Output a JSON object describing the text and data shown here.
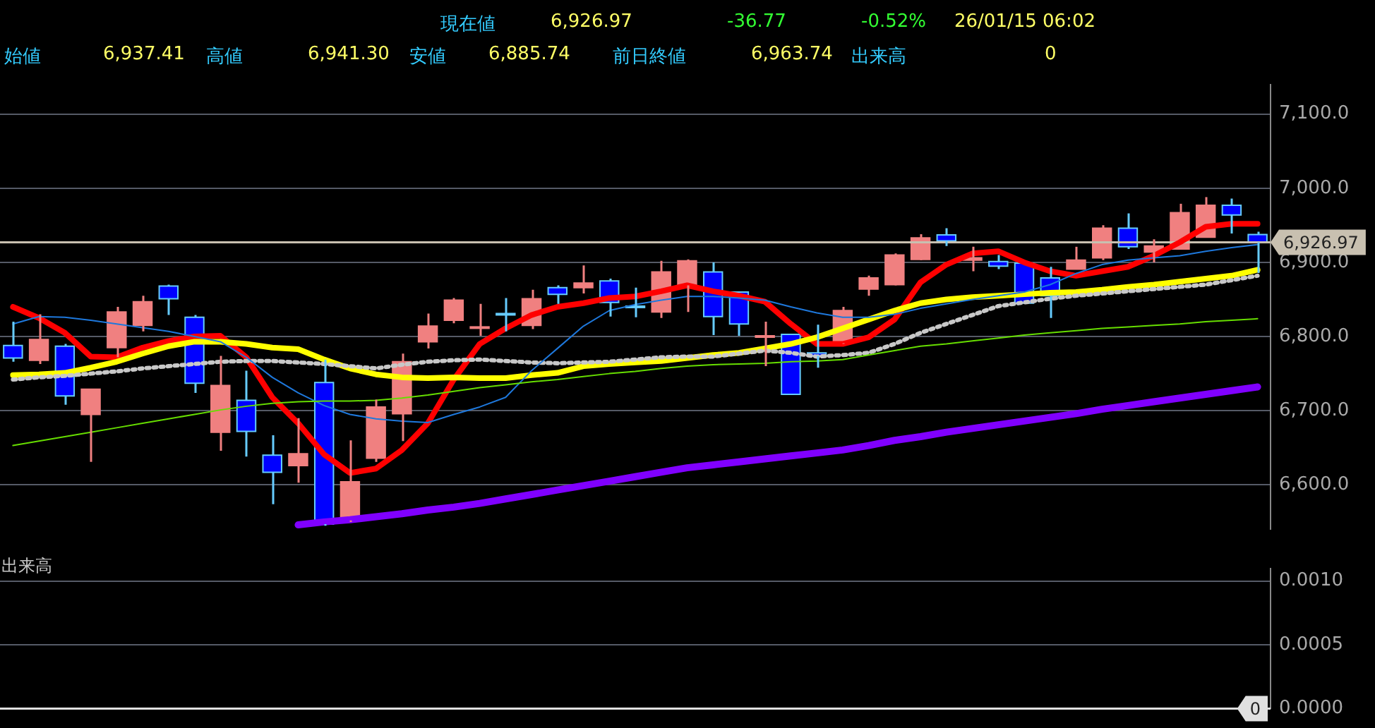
{
  "chart_data": [
    {
      "type": "candlestick",
      "tick_labels": "y",
      "grid": "y",
      "categories": [
        null,
        null,
        null,
        null,
        null,
        null,
        null,
        null,
        null,
        null,
        null,
        null,
        null,
        null,
        null,
        null,
        null,
        null,
        null,
        null,
        null,
        null,
        null,
        null,
        null,
        null,
        null,
        null,
        null,
        null,
        null,
        null,
        null,
        null,
        null,
        null,
        null,
        null,
        null,
        null,
        null,
        null,
        null,
        null,
        null,
        null,
        null,
        null,
        null
      ],
      "ohlc": [
        [
          6788,
          6820,
          6766,
          6771
        ],
        [
          6768,
          6830,
          6763,
          6796
        ],
        [
          6787,
          6790,
          6708,
          6720
        ],
        [
          6695,
          6729,
          6631,
          6729
        ],
        [
          6785,
          6840,
          6772,
          6833
        ],
        [
          6815,
          6855,
          6807,
          6847
        ],
        [
          6868,
          6870,
          6829,
          6851
        ],
        [
          6826,
          6829,
          6724,
          6737
        ],
        [
          6671,
          6774,
          6646,
          6734
        ],
        [
          6714,
          6754,
          6638,
          6672
        ],
        [
          6640,
          6667,
          6574,
          6617
        ],
        [
          6626,
          6690,
          6603,
          6642
        ],
        [
          6738,
          6769,
          6545,
          6547
        ],
        [
          6552,
          6660,
          6550,
          6604
        ],
        [
          6636,
          6715,
          6631,
          6705
        ],
        [
          6696,
          6777,
          6659,
          6766
        ],
        [
          6793,
          6831,
          6784,
          6814
        ],
        [
          6822,
          6852,
          6818,
          6849
        ],
        [
          6812,
          6844,
          6801,
          6813
        ],
        [
          6831,
          6852,
          6807,
          6830
        ],
        [
          6815,
          6863,
          6810,
          6851
        ],
        [
          6866,
          6869,
          6844,
          6857
        ],
        [
          6866,
          6896,
          6858,
          6872
        ],
        [
          6875,
          6878,
          6827,
          6846
        ],
        [
          6841,
          6866,
          6826,
          6840
        ],
        [
          6833,
          6902,
          6825,
          6887
        ],
        [
          6869,
          6904,
          6833,
          6902
        ],
        [
          6887,
          6900,
          6802,
          6827
        ],
        [
          6860,
          6861,
          6801,
          6817
        ],
        [
          6800,
          6820,
          6760,
          6801
        ],
        [
          6803,
          6803,
          6722,
          6722
        ],
        [
          6778,
          6816,
          6758,
          6774
        ],
        [
          6791,
          6840,
          6790,
          6835
        ],
        [
          6864,
          6882,
          6855,
          6879
        ],
        [
          6870,
          6912,
          6869,
          6910
        ],
        [
          6904,
          6938,
          6903,
          6933
        ],
        [
          6937,
          6946,
          6922,
          6929
        ],
        [
          6903,
          6921,
          6888,
          6906
        ],
        [
          6901,
          6910,
          6891,
          6895
        ],
        [
          6899,
          6899,
          6845,
          6845
        ],
        [
          6879,
          6894,
          6825,
          6855
        ],
        [
          6891,
          6921,
          6891,
          6903
        ],
        [
          6906,
          6950,
          6903,
          6946
        ],
        [
          6946,
          6966,
          6918,
          6921
        ],
        [
          6914,
          6931,
          6900,
          6922
        ],
        [
          6918,
          6979,
          6918,
          6967
        ],
        [
          6934,
          6988,
          6934,
          6977
        ],
        [
          6977,
          6986,
          6939,
          6964
        ],
        [
          6937.41,
          6941.3,
          6885.74,
          6926.97
        ]
      ],
      "colors": [
        "#0000ff",
        "#f08080",
        "#0000ff",
        "#f08080",
        "#f08080",
        "#f08080",
        "#0000ff",
        "#0000ff",
        "#f08080",
        "#0000ff",
        "#0000ff",
        "#f08080",
        "#0000ff",
        "#f08080",
        "#f08080",
        "#f08080",
        "#f08080",
        "#f08080",
        "#f08080",
        "#0000ff",
        "#f08080",
        "#0000ff",
        "#f08080",
        "#0000ff",
        "#0000ff",
        "#f08080",
        "#f08080",
        "#0000ff",
        "#0000ff",
        "#f08080",
        "#0000ff",
        "#0000ff",
        "#f08080",
        "#f08080",
        "#f08080",
        "#f08080",
        "#0000ff",
        "#f08080",
        "#0000ff",
        "#0000ff",
        "#0000ff",
        "#f08080",
        "#f08080",
        "#0000ff",
        "#f08080",
        "#f08080",
        "#f08080",
        "#0000ff",
        "#0000ff"
      ],
      "series": [
        {
          "type": "line",
          "color": "#8000ff",
          "values": [
            null,
            null,
            null,
            null,
            null,
            null,
            null,
            null,
            null,
            null,
            null,
            6546,
            6550,
            6553,
            6557,
            6561,
            6566,
            6570,
            6575,
            6581,
            6587,
            6593,
            6599,
            6605,
            6611,
            6617,
            6623,
            6627,
            6631,
            6635,
            6639,
            6643,
            6647,
            6653,
            6660,
            6665,
            6671,
            6676,
            6681,
            6686,
            6691,
            6696,
            6702,
            6707,
            6712,
            6717,
            6722,
            6727,
            6732
          ]
        },
        {
          "type": "line",
          "color": "#66dd00",
          "values": [
            6653,
            6659,
            6665,
            6671,
            6677,
            6683,
            6689,
            6695,
            6701,
            6706,
            6710,
            6712,
            6713,
            6713,
            6714,
            6717,
            6721,
            6726,
            6731,
            6735,
            6739,
            6742,
            6746,
            6750,
            6753,
            6757,
            6760,
            6762,
            6763,
            6764,
            6766,
            6767,
            6769,
            6775,
            6781,
            6787,
            6790,
            6794,
            6798,
            6802,
            6805,
            6808,
            6811,
            6813,
            6815,
            6817,
            6820,
            6822,
            6824
          ]
        },
        {
          "type": "line",
          "color": "#1e78dc",
          "values": [
            6817,
            6827,
            6826,
            6822,
            6817,
            6812,
            6807,
            6800,
            6793,
            6772,
            6745,
            6724,
            6707,
            6695,
            6689,
            6686,
            6684,
            6695,
            6705,
            6718,
            6754,
            6784,
            6814,
            6835,
            6843,
            6849,
            6854,
            6854,
            6852,
            6849,
            6840,
            6832,
            6826,
            6826,
            6830,
            6838,
            6844,
            6850,
            6855,
            6860,
            6870,
            6885,
            6897,
            6903,
            6906,
            6909,
            6915,
            6920,
            6924
          ]
        },
        {
          "type": "line",
          "color": "#c8c8c8",
          "line_style": "dotted",
          "values": [
            6742,
            6745,
            6747,
            6750,
            6753,
            6757,
            6760,
            6763,
            6766,
            6767,
            6767,
            6765,
            6763,
            6760,
            6757,
            6762,
            6766,
            6768,
            6769,
            6767,
            6765,
            6764,
            6765,
            6766,
            6769,
            6772,
            6773,
            6773,
            6777,
            6781,
            6778,
            6773,
            6775,
            6778,
            6790,
            6805,
            6817,
            6829,
            6841,
            6846,
            6851,
            6855,
            6858,
            6861,
            6864,
            6867,
            6870,
            6876,
            6882
          ]
        },
        {
          "type": "line",
          "color": "#ffff00",
          "values": [
            6748,
            6749,
            6751,
            6758,
            6766,
            6777,
            6787,
            6793,
            6793,
            6790,
            6785,
            6783,
            6769,
            6757,
            6749,
            6745,
            6744,
            6745,
            6744,
            6744,
            6748,
            6751,
            6760,
            6763,
            6765,
            6767,
            6771,
            6775,
            6778,
            6784,
            6790,
            6799,
            6811,
            6823,
            6835,
            6845,
            6850,
            6853,
            6855,
            6857,
            6859,
            6860,
            6863,
            6867,
            6870,
            6874,
            6878,
            6882,
            6890
          ]
        },
        {
          "type": "line",
          "color": "#ff0000",
          "values": [
            6840,
            6825,
            6805,
            6773,
            6772,
            6785,
            6794,
            6800,
            6801,
            6772,
            6718,
            6683,
            6641,
            6616,
            6622,
            6647,
            6683,
            6742,
            6790,
            6811,
            6829,
            6840,
            6845,
            6852,
            6854,
            6861,
            6869,
            6861,
            6855,
            6847,
            6817,
            6790,
            6790,
            6799,
            6823,
            6873,
            6897,
            6912,
            6915,
            6900,
            6888,
            6882,
            6888,
            6894,
            6909,
            6927,
            6948,
            6952,
            6952
          ]
        }
      ],
      "ylim": [
        6540,
        7140
      ],
      "yticks": [
        {
          "value": 6600,
          "label": "6,600.0"
        },
        {
          "value": 6700,
          "label": "6,700.0"
        },
        {
          "value": 6800,
          "label": "6,800.0"
        },
        {
          "value": 6900,
          "label": "6,900.0"
        },
        {
          "value": 7000,
          "label": "7,000.0"
        },
        {
          "value": 7100,
          "label": "7,100.0"
        }
      ],
      "ref_lines": [
        {
          "axis": "y",
          "value": 6926.97,
          "label": "6,926.97",
          "color": "#c8c0b0"
        }
      ],
      "annotations": [
        "現在値",
        "6,926.97",
        "-36.77",
        "-0.52%",
        "26/01/15 06:02",
        "始値",
        "6,937.41",
        "高値",
        "6,941.30",
        "安値",
        "6,885.74",
        "前日終値",
        "6,963.74",
        "出来高",
        "0"
      ]
    },
    {
      "type": "bar",
      "title": "出来高",
      "tick_labels": "y",
      "grid": "y",
      "categories": [
        null,
        null,
        null,
        null,
        null,
        null,
        null,
        null,
        null,
        null,
        null,
        null,
        null,
        null,
        null,
        null,
        null,
        null,
        null,
        null,
        null,
        null,
        null,
        null,
        null,
        null,
        null,
        null,
        null,
        null,
        null,
        null,
        null,
        null,
        null,
        null,
        null,
        null,
        null,
        null,
        null,
        null,
        null,
        null,
        null,
        null,
        null,
        null,
        null
      ],
      "values": [
        0,
        0,
        0,
        0,
        0,
        0,
        0,
        0,
        0,
        0,
        0,
        0,
        0,
        0,
        0,
        0,
        0,
        0,
        0,
        0,
        0,
        0,
        0,
        0,
        0,
        0,
        0,
        0,
        0,
        0,
        0,
        0,
        0,
        0,
        0,
        0,
        0,
        0,
        0,
        0,
        0,
        0,
        0,
        0,
        0,
        0,
        0,
        0,
        0
      ],
      "ylim": [
        0,
        0.0011
      ],
      "yticks": [
        {
          "value": 0,
          "label": "0.0000"
        },
        {
          "value": 0.0005,
          "label": "0.0005"
        },
        {
          "value": 0.001,
          "label": "0.0010"
        }
      ],
      "ref_lines": [
        {
          "axis": "y",
          "value": 0,
          "label": "0",
          "color": "#e0e0e0"
        }
      ]
    }
  ]
}
